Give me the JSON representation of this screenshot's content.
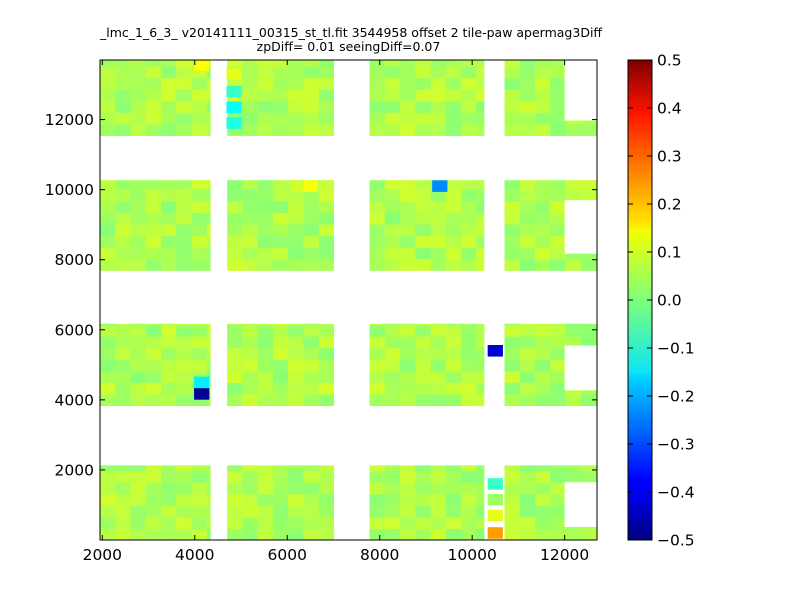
{
  "chart_data": {
    "type": "heatmap",
    "title": "_lmc_1_6_3_ v20141111_00315_st_tl.fit 3544958 offset 2 tile-paw apermag3Diff",
    "subtitle": "zpDiff= 0.01 seeingDiff=0.07",
    "xlabel": "",
    "ylabel": "",
    "xlim": [
      1950,
      12700
    ],
    "ylim": [
      0,
      13700
    ],
    "x_ticks": [
      2000,
      4000,
      6000,
      8000,
      10000,
      12000
    ],
    "y_ticks": [
      2000,
      4000,
      6000,
      8000,
      10000,
      12000
    ],
    "x_tick_labels": [
      "2000",
      "4000",
      "6000",
      "8000",
      "10000",
      "12000"
    ],
    "y_tick_labels": [
      "2000",
      "4000",
      "6000",
      "8000",
      "10000",
      "12000"
    ],
    "colorbar": {
      "colormap": "jet",
      "range": [
        -0.5,
        0.5
      ],
      "ticks": [
        0.5,
        0.4,
        0.3,
        0.2,
        0.1,
        0.0,
        -0.1,
        -0.2,
        -0.3,
        -0.4,
        -0.5
      ],
      "tick_labels": [
        "0.5",
        "0.4",
        "0.3",
        "0.2",
        "0.1",
        "0.0",
        "−0.1",
        "−0.2",
        "−0.3",
        "−0.4",
        "−0.5"
      ]
    },
    "bands_x": [
      [
        1950,
        4330
      ],
      [
        4700,
        7000
      ],
      [
        7780,
        10250
      ],
      [
        10700,
        12700
      ]
    ],
    "bands_y": [
      [
        0,
        2130
      ],
      [
        3840,
        6170
      ],
      [
        7700,
        10270
      ],
      [
        11550,
        13700
      ]
    ],
    "cell_size": 330,
    "special_cells": [
      {
        "x": 4150,
        "y": 4170,
        "value": -0.48
      },
      {
        "x": 4150,
        "y": 4500,
        "value": -0.14
      },
      {
        "x": 4150,
        "y": 13550,
        "value": 0.12
      },
      {
        "x": 4850,
        "y": 13300,
        "value": 0.1
      },
      {
        "x": 4850,
        "y": 12800,
        "value": -0.07
      },
      {
        "x": 4850,
        "y": 12350,
        "value": -0.12
      },
      {
        "x": 4850,
        "y": 11900,
        "value": -0.1
      },
      {
        "x": 6200,
        "y": 10100,
        "value": 0.08
      },
      {
        "x": 6500,
        "y": 10100,
        "value": 0.12
      },
      {
        "x": 9300,
        "y": 10100,
        "value": -0.24
      },
      {
        "x": 10500,
        "y": 5400,
        "value": -0.42
      },
      {
        "x": 10500,
        "y": 200,
        "value": 0.22
      },
      {
        "x": 10500,
        "y": 700,
        "value": 0.1
      },
      {
        "x": 10500,
        "y": 1600,
        "value": -0.07
      },
      {
        "x": 10500,
        "y": 1150,
        "value": 0.03
      }
    ],
    "grid": false
  }
}
